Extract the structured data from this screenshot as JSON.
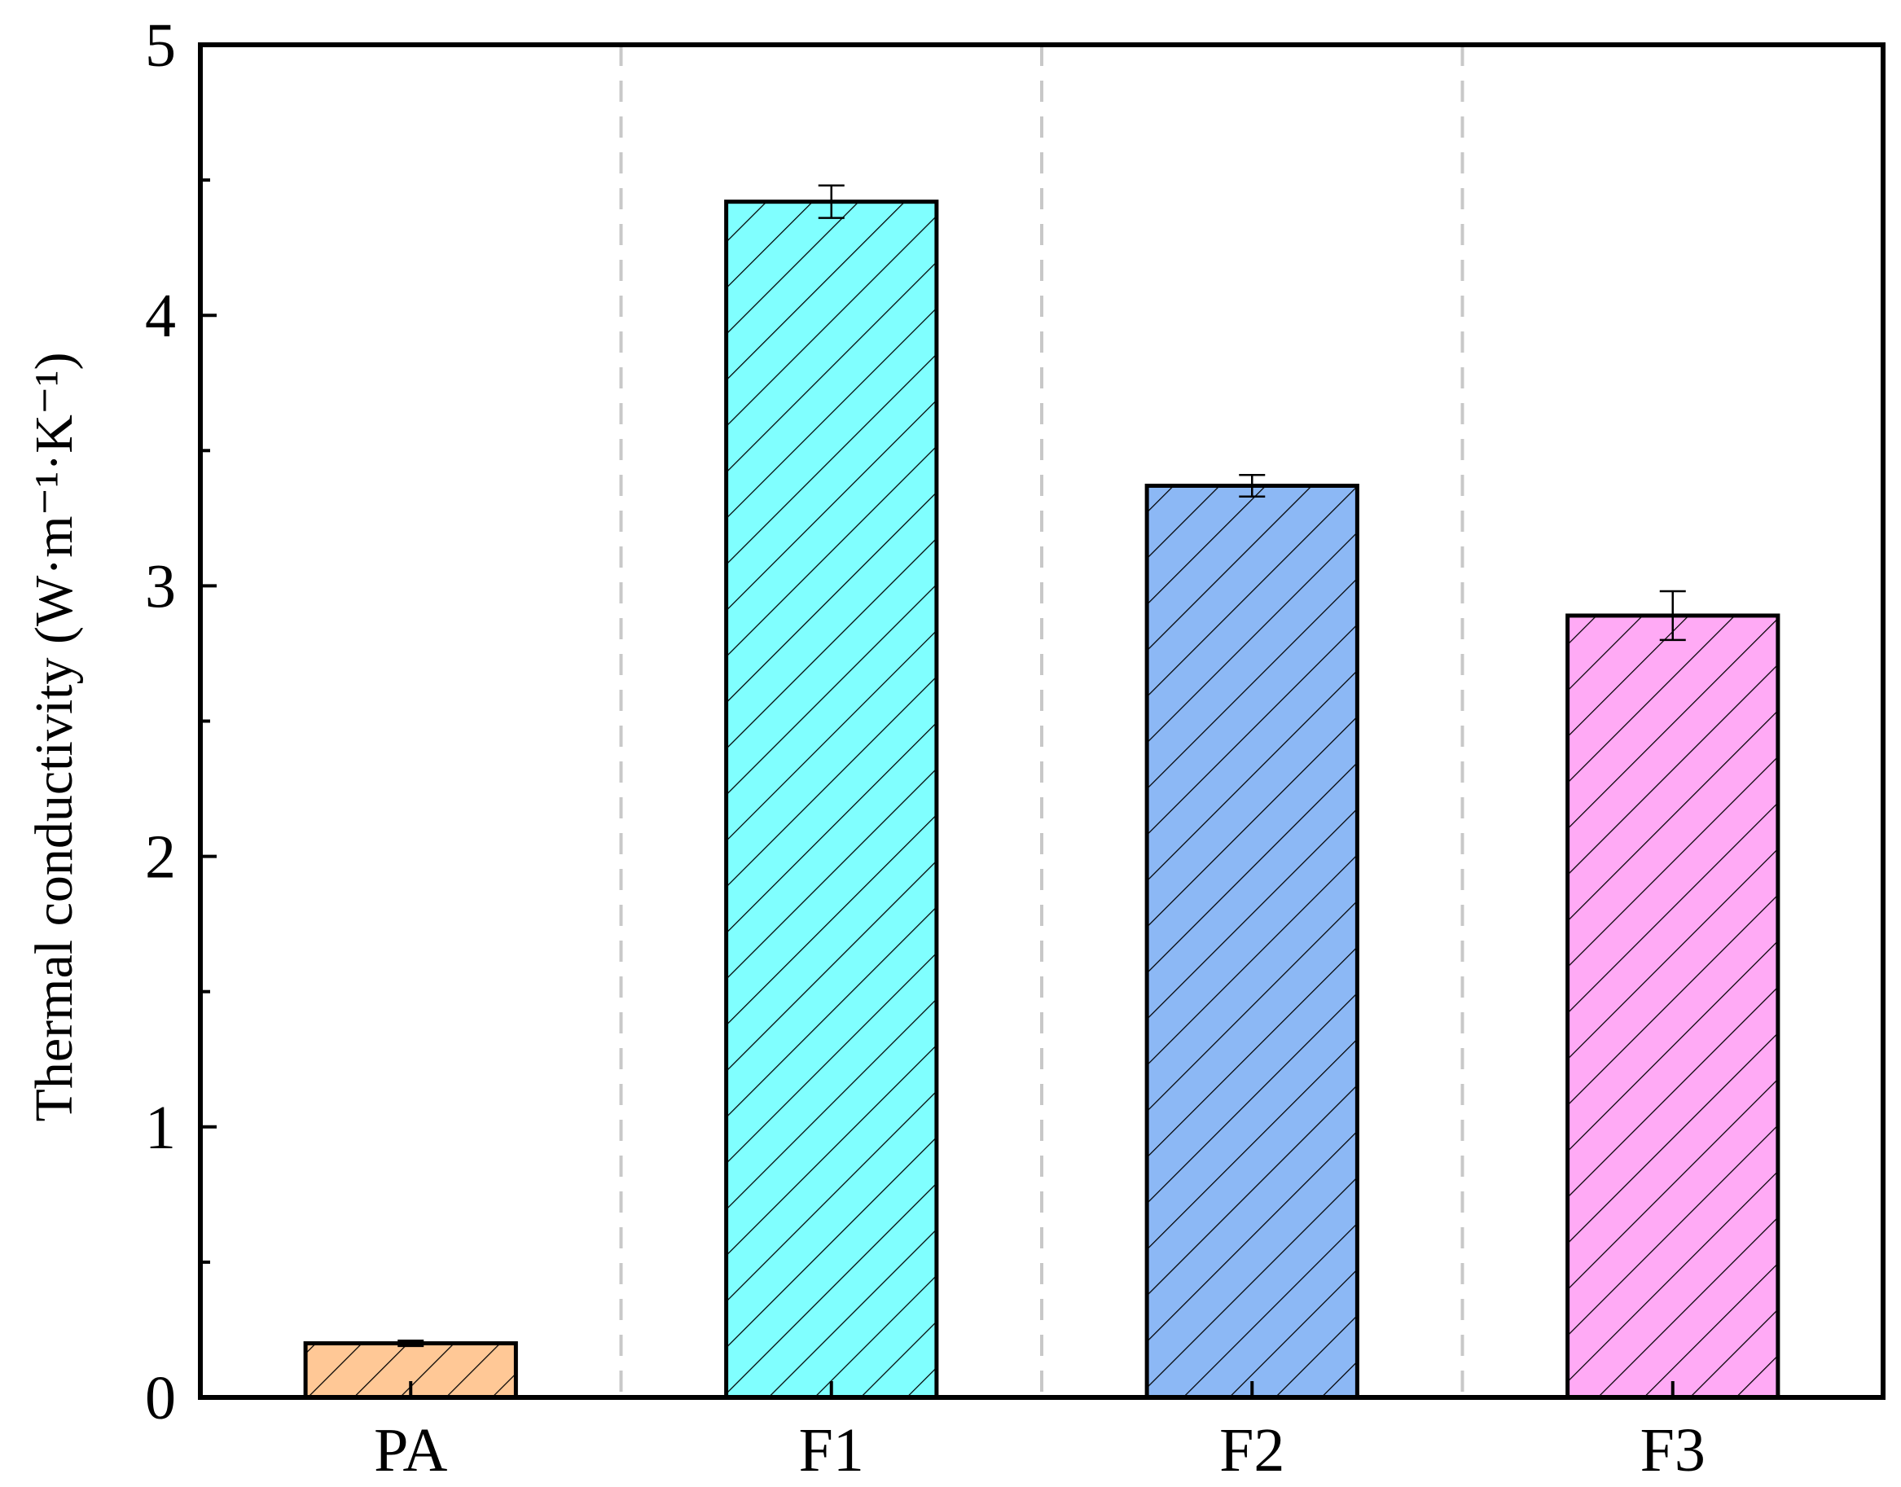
{
  "chart_data": {
    "type": "bar",
    "y_label": "Thermal conductivity (W·m⁻¹·K⁻¹)",
    "categories": [
      "PA",
      "F1",
      "F2",
      "F3"
    ],
    "values": [
      0.2,
      4.42,
      3.37,
      2.89
    ],
    "errors": [
      0.01,
      0.06,
      0.04,
      0.09
    ],
    "colors": [
      "#ffc896",
      "#80ffff",
      "#8cb8f5",
      "#ffaaf5"
    ],
    "hatch": true,
    "ylim": [
      0,
      5
    ],
    "yticks": [
      0,
      1,
      2,
      3,
      4,
      5
    ],
    "yminor_ticks": [
      0.5,
      1.5,
      2.5,
      3.5,
      4.5
    ]
  }
}
